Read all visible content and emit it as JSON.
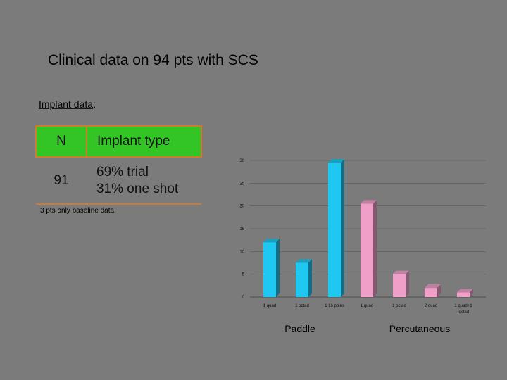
{
  "title": "Clinical data on 94 pts with SCS",
  "section_label_main": "Implant data",
  "section_label_suffix": ":",
  "table": {
    "headers": [
      "N",
      "Implant type"
    ],
    "row": {
      "n": "91",
      "type_line1": "69% trial",
      "type_line2": "31% one shot"
    }
  },
  "footnote": "3 pts only baseline data",
  "colors": {
    "background": "#7b7b7b",
    "table_header": "#33c425",
    "table_border": "#d07a2e",
    "paddle": "#1ec8f0",
    "percutaneous": "#f0a0c8"
  },
  "chart_data": {
    "type": "bar",
    "categories": [
      "1 quad",
      "1 octad",
      "1 16 poles",
      "1 quad",
      "1 octad",
      "2 quad",
      "1 quad+1 octad"
    ],
    "values": [
      12,
      7.5,
      29.5,
      20.5,
      5,
      2,
      1
    ],
    "groups": [
      {
        "name": "Paddle",
        "members": [
          0,
          1,
          2
        ],
        "color": "#1ec8f0"
      },
      {
        "name": "Percutaneous",
        "members": [
          3,
          4,
          5,
          6
        ],
        "color": "#f0a0c8"
      }
    ],
    "yticks": [
      0,
      5,
      10,
      15,
      20,
      25,
      30
    ],
    "ylim": [
      0,
      30
    ],
    "grid": true
  }
}
